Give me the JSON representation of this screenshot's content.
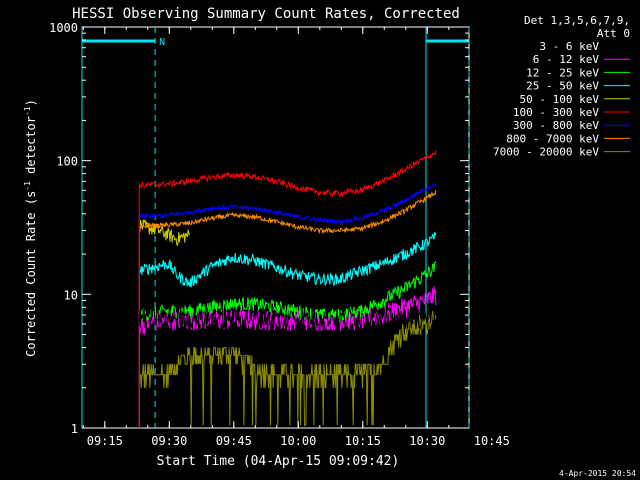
{
  "chart_data": {
    "type": "line",
    "title": "HESSI Observing Summary Count Rates, Corrected",
    "xlabel": "Start Time (04-Apr-15 09:09:42)",
    "ylabel": "Corrected Count Rate (s⁻¹ detector⁻¹)",
    "ylabel_main": "Corrected Count Rate (s",
    "ylabel_sup1": "-1",
    "ylabel_mid": " detector",
    "ylabel_sup2": "-1",
    "ylabel_end": ")",
    "x_unit": "minutes since 09:09:42",
    "xlim": [
      0,
      90
    ],
    "ylim": [
      1,
      1000
    ],
    "yscale": "log",
    "x_ticks": [
      {
        "value": 5.3,
        "label": "09:15"
      },
      {
        "value": 20.3,
        "label": "09:30"
      },
      {
        "value": 35.3,
        "label": "09:45"
      },
      {
        "value": 50.3,
        "label": "10:00"
      },
      {
        "value": 65.3,
        "label": "10:15"
      },
      {
        "value": 80.3,
        "label": "10:30"
      },
      {
        "value": 95.3,
        "label": "10:45"
      }
    ],
    "y_ticks": [
      {
        "value": 1,
        "label": "1"
      },
      {
        "value": 10,
        "label": "10"
      },
      {
        "value": 100,
        "label": "100"
      },
      {
        "value": 1000,
        "label": "1000"
      }
    ],
    "legend_header": [
      "Det 1,3,5,6,7,9,",
      "Att 0"
    ],
    "legend_position": "right",
    "footer_timestamp": "4-Apr-2015 20:54",
    "markers": {
      "solid_lines": [
        0,
        80.0
      ],
      "dashed_lines": [
        17.0,
        90.0
      ],
      "flag_bars": [
        [
          0,
          17.0
        ],
        [
          80.0,
          90.0
        ]
      ],
      "flag_label": "N",
      "color": "#00e5ee"
    },
    "data_window": [
      13.3,
      82.3
    ],
    "series": [
      {
        "name": "3 - 6 keV",
        "color": "#000000",
        "x": [
          13.3,
          90
        ],
        "values": [
          0,
          0
        ]
      },
      {
        "name": "6 - 12 keV",
        "color": "#ff00ff",
        "x": [
          13.3,
          20,
          30,
          40,
          50,
          60,
          65,
          70,
          75,
          80,
          82.3
        ],
        "values": [
          6,
          6.5,
          6.5,
          6.5,
          6.5,
          6.5,
          6.5,
          7,
          8,
          9,
          10
        ]
      },
      {
        "name": "12 - 25 keV",
        "color": "#00ff00",
        "x": [
          13.3,
          20,
          25,
          30,
          35,
          40,
          45,
          50,
          55,
          60,
          65,
          70,
          75,
          80,
          82.3
        ],
        "values": [
          7,
          7.5,
          7.5,
          8,
          8.5,
          8.5,
          8,
          7.5,
          7,
          7,
          7.5,
          9,
          11,
          14,
          16
        ]
      },
      {
        "name": "25 - 50 keV",
        "color": "#00ffff",
        "x": [
          13.3,
          20,
          22,
          25,
          30,
          35,
          40,
          45,
          50,
          55,
          60,
          65,
          70,
          75,
          80,
          82.3
        ],
        "values": [
          15,
          17,
          14,
          12,
          16,
          19,
          18,
          16,
          14,
          13,
          13,
          15,
          17,
          20,
          24,
          27
        ]
      },
      {
        "name": "50 - 100 keV",
        "color": "#cccc00",
        "x": [
          13.3,
          18,
          22,
          25
        ],
        "values": [
          33,
          30,
          26,
          28
        ]
      },
      {
        "name": "100 - 300 keV",
        "color": "#ff0000",
        "x": [
          13.3,
          20,
          25,
          30,
          35,
          40,
          45,
          50,
          55,
          60,
          65,
          70,
          75,
          80,
          82.3
        ],
        "values": [
          65,
          67,
          70,
          75,
          78,
          76,
          70,
          63,
          58,
          57,
          60,
          70,
          85,
          105,
          115
        ]
      },
      {
        "name": "300 - 800 keV",
        "color": "#0000ff",
        "x": [
          13.3,
          20,
          25,
          30,
          35,
          40,
          45,
          50,
          55,
          60,
          65,
          70,
          75,
          80,
          82.3
        ],
        "values": [
          38,
          39,
          41,
          44,
          45,
          44,
          41,
          38,
          36,
          35,
          37,
          42,
          50,
          62,
          67
        ]
      },
      {
        "name": "800 - 7000 keV",
        "color": "#ff8c00",
        "x": [
          13.3,
          20,
          25,
          30,
          35,
          40,
          45,
          50,
          55,
          60,
          65,
          70,
          75,
          80,
          82.3
        ],
        "values": [
          32,
          33,
          34,
          37,
          39,
          38,
          35,
          32,
          30,
          30,
          31,
          35,
          42,
          52,
          58
        ]
      },
      {
        "name": "7000 - 20000 keV",
        "color": "#8b8b00",
        "x": [
          13.3,
          20,
          25,
          30,
          35,
          40,
          45,
          50,
          55,
          60,
          65,
          70,
          75,
          80,
          82.3
        ],
        "values": [
          2.5,
          2.5,
          3.5,
          3.5,
          3.7,
          2.7,
          2.5,
          2.5,
          2.5,
          2.5,
          2.5,
          3.0,
          5.5,
          6.0,
          7.5
        ]
      }
    ]
  }
}
